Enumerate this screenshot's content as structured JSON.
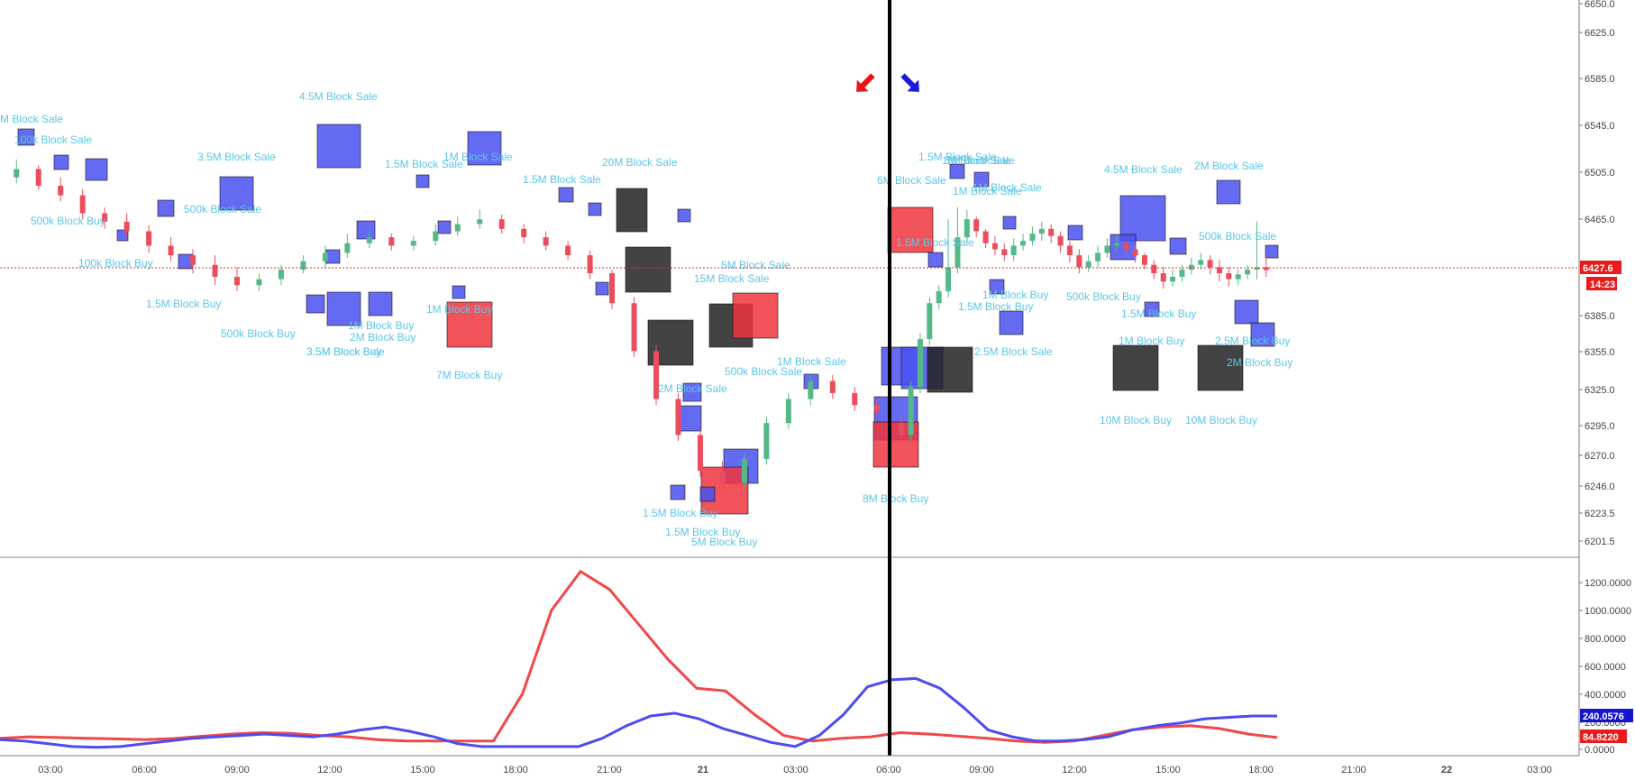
{
  "colors": {
    "up": "#53b987",
    "down": "#eb4d5c",
    "buy_box": "#4a50f0",
    "sale_box": "#f0343c",
    "black_box": "#222222",
    "annotation": "#5cc6e8",
    "price_line": "#e03030",
    "osc_red": "#f04848",
    "osc_blue": "#4c4cf0",
    "blue_badge": "#1515d0",
    "red_badge": "#e81c1c"
  },
  "price_axis": {
    "ticks": [
      "6650.0",
      "6625.0",
      "6585.0",
      "6545.0",
      "6505.0",
      "6465.0",
      "6425.0",
      "6385.0",
      "6355.0",
      "6325.0",
      "6295.0",
      "6270.0",
      "6246.0",
      "6223.5",
      "6201.5"
    ],
    "last_price": "6427.6",
    "countdown": "14:23"
  },
  "oscillator_axis": {
    "ticks": [
      "1200.0000",
      "1000.0000",
      "800.0000",
      "600.0000",
      "400.0000",
      "200.0000",
      "0.0000"
    ],
    "blue_value": "240.0576",
    "red_value": "84.8220"
  },
  "time_axis": {
    "ticks": [
      "03:00",
      "06:00",
      "09:00",
      "12:00",
      "15:00",
      "18:00",
      "21:00",
      "21",
      "03:00",
      "06:00",
      "09:00",
      "12:00",
      "15:00",
      "18:00",
      "21:00",
      "22",
      "03:00"
    ],
    "bold": [
      "21",
      "22"
    ]
  },
  "markers": {
    "red_arrow": "down-left arrow",
    "blue_arrow": "down-right arrow"
  },
  "annotations": [
    "M Block Sale",
    "4.5M Block Sale",
    "3.5M Block Sale",
    "3.5M Block Sale",
    "1.5M Block Sale",
    "1M Block Sale",
    "20M Block Sale",
    "1.5M Block Sale",
    "1M Block Sale",
    "1M Block Sale",
    "100k Block Sale",
    "500k Block Sale",
    "500k Block Buy",
    "1.5M Block Buy",
    "2M Block Buy",
    "3.5M Block Buy",
    "500k Block Buy",
    "1M Block Buy",
    "7M Block Buy",
    "1M Block Buy",
    "5M Block Sale",
    "15M Block Sale",
    "2M Block Sale",
    "1M Block Sale",
    "500k Block Sale",
    "1.5M Block Buy",
    "1.5M Block Buy",
    "5M Block Buy",
    "8M Block Buy",
    "6M Block Sale",
    "1.5M Block Sale",
    "1M Block Sale",
    "1M Block Sale",
    "1.5M Block Sale",
    "2.5M Block Sale",
    "1.5M Block Buy",
    "4.5M Block Sale",
    "2M Block Sale",
    "500k Block Sale",
    "1.5M Block Buy",
    "1M Block Buy",
    "2.5M Block Buy",
    "2M Block Buy",
    "10M Block Buy",
    "10M Block Buy",
    "500k Block Buy",
    "1M Block Buy",
    "100k Block Buy"
  ],
  "chart_data": [
    {
      "type": "candlestick",
      "title": "",
      "series": [
        {
          "x": [
            0,
            1,
            2,
            3,
            4,
            5,
            6,
            7,
            8,
            9,
            10,
            11,
            12,
            13,
            14,
            15,
            16,
            17,
            18,
            19,
            20,
            21,
            22,
            23,
            24,
            25,
            26,
            27,
            28,
            29,
            30,
            31,
            32,
            33,
            34,
            35,
            36,
            37,
            38,
            39
          ],
          "open": [
            6505,
            6512,
            6498,
            6490,
            6475,
            6468,
            6460,
            6448,
            6440,
            6432,
            6422,
            6415,
            6420,
            6428,
            6435,
            6442,
            6450,
            6455,
            6448,
            6452,
            6460,
            6466,
            6470,
            6462,
            6455,
            6448,
            6440,
            6425,
            6400,
            6360,
            6320,
            6290,
            6260,
            6250,
            6270,
            6300,
            6320,
            6335,
            6325,
            6315
          ],
          "close": [
            6512,
            6498,
            6490,
            6475,
            6468,
            6460,
            6448,
            6440,
            6432,
            6422,
            6415,
            6420,
            6428,
            6435,
            6442,
            6450,
            6455,
            6448,
            6452,
            6460,
            6466,
            6470,
            6462,
            6455,
            6448,
            6440,
            6425,
            6400,
            6360,
            6320,
            6290,
            6260,
            6250,
            6270,
            6300,
            6320,
            6335,
            6325,
            6315,
            6310
          ],
          "high": [
            6520,
            6515,
            6505,
            6495,
            6480,
            6475,
            6465,
            6455,
            6445,
            6440,
            6430,
            6425,
            6432,
            6440,
            6448,
            6458,
            6460,
            6458,
            6456,
            6466,
            6472,
            6478,
            6474,
            6466,
            6460,
            6452,
            6444,
            6428,
            6405,
            6365,
            6325,
            6295,
            6268,
            6275,
            6305,
            6325,
            6340,
            6340,
            6330,
            6320
          ],
          "low": [
            6500,
            6495,
            6485,
            6470,
            6462,
            6455,
            6442,
            6435,
            6425,
            6415,
            6410,
            6410,
            6415,
            6425,
            6430,
            6438,
            6446,
            6444,
            6444,
            6448,
            6456,
            6462,
            6458,
            6450,
            6444,
            6436,
            6420,
            6395,
            6355,
            6315,
            6285,
            6255,
            6240,
            6245,
            6265,
            6295,
            6315,
            6320,
            6310,
            6305
          ]
        },
        {
          "x": [
            40,
            41,
            42,
            43,
            44,
            45,
            46,
            47,
            48,
            49,
            50,
            51,
            52,
            53,
            54,
            55,
            56,
            57,
            58,
            59,
            60,
            61,
            62,
            63,
            64,
            65,
            66,
            67,
            68,
            69,
            70,
            71,
            72,
            73,
            74,
            75,
            76,
            77,
            78,
            79
          ],
          "open": [
            6300,
            6290,
            6330,
            6370,
            6400,
            6410,
            6430,
            6455,
            6470,
            6460,
            6450,
            6445,
            6440,
            6448,
            6452,
            6458,
            6462,
            6456,
            6448,
            6440,
            6430,
            6435,
            6442,
            6448,
            6450,
            6445,
            6440,
            6432,
            6425,
            6418,
            6422,
            6428,
            6432,
            6436,
            6430,
            6425,
            6420,
            6424,
            6428,
            6430
          ],
          "close": [
            6290,
            6330,
            6370,
            6400,
            6410,
            6430,
            6455,
            6470,
            6460,
            6450,
            6445,
            6440,
            6448,
            6452,
            6458,
            6462,
            6456,
            6448,
            6440,
            6430,
            6435,
            6442,
            6448,
            6450,
            6445,
            6440,
            6432,
            6425,
            6418,
            6422,
            6428,
            6432,
            6436,
            6430,
            6425,
            6420,
            6424,
            6428,
            6430,
            6427.6
          ],
          "high": [
            6305,
            6335,
            6375,
            6405,
            6415,
            6470,
            6480,
            6478,
            6472,
            6462,
            6456,
            6450,
            6454,
            6458,
            6464,
            6468,
            6466,
            6460,
            6452,
            6445,
            6440,
            6448,
            6454,
            6456,
            6452,
            6448,
            6442,
            6436,
            6430,
            6428,
            6432,
            6438,
            6442,
            6440,
            6436,
            6430,
            6428,
            6432,
            6468,
            6440
          ],
          "low": [
            6280,
            6285,
            6325,
            6365,
            6395,
            6405,
            6425,
            6450,
            6455,
            6446,
            6440,
            6435,
            6435,
            6444,
            6448,
            6452,
            6450,
            6442,
            6434,
            6425,
            6426,
            6430,
            6438,
            6444,
            6440,
            6434,
            6428,
            6420,
            6412,
            6414,
            6418,
            6424,
            6428,
            6424,
            6418,
            6414,
            6415,
            6420,
            6420,
            6422
          ]
        }
      ],
      "ylim": [
        6190,
        6655
      ]
    },
    {
      "type": "line",
      "title": "",
      "series": [
        {
          "color": "red",
          "values": [
            80,
            90,
            85,
            80,
            75,
            70,
            78,
            95,
            110,
            120,
            115,
            100,
            90,
            70,
            60,
            60,
            60,
            60,
            400,
            1000,
            1280,
            1150,
            900,
            650,
            440,
            420,
            250,
            100,
            60,
            80,
            90,
            120,
            110,
            95,
            80,
            60,
            50,
            60,
            100,
            140,
            160,
            170,
            150,
            110,
            84.82
          ]
        },
        {
          "color": "blue",
          "values": [
            70,
            60,
            40,
            20,
            15,
            20,
            40,
            60,
            80,
            90,
            100,
            110,
            100,
            90,
            110,
            140,
            160,
            130,
            90,
            40,
            20,
            20,
            20,
            20,
            20,
            80,
            170,
            240,
            260,
            220,
            150,
            100,
            50,
            20,
            100,
            250,
            450,
            500,
            510,
            440,
            300,
            140,
            90,
            60,
            60,
            70,
            90,
            140,
            170,
            190,
            220,
            230,
            240,
            240.0576
          ]
        }
      ],
      "ylim": [
        -30,
        1330
      ]
    }
  ]
}
